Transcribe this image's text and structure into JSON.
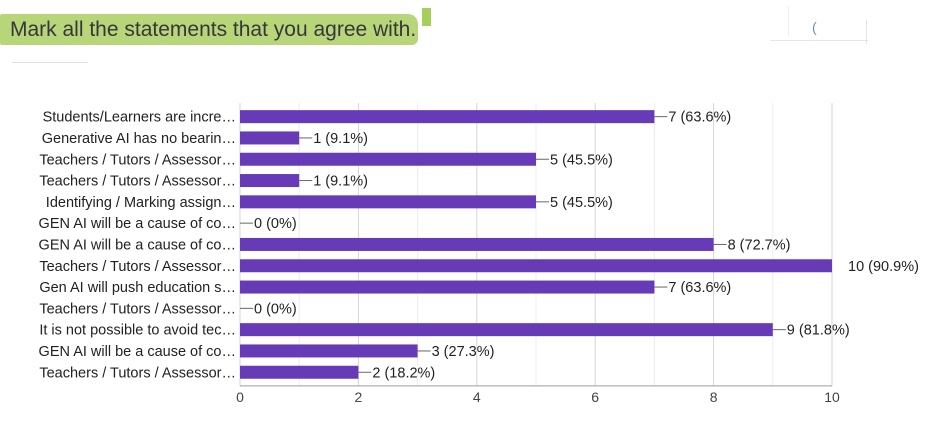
{
  "header": {
    "question": "Mark all the statements that you agree with.",
    "highlight_color": "#b7d67a"
  },
  "chart_data": {
    "type": "bar",
    "orientation": "horizontal",
    "bar_color": "#673ab7",
    "categories": [
      "Students/Learners are incre…",
      "Generative AI has no bearin…",
      "Teachers / Tutors / Assessor…",
      "Teachers / Tutors / Assessor…",
      "Identifying / Marking assign…",
      "GEN AI will be a cause of co…",
      "GEN AI will be a cause of co…",
      "Teachers / Tutors / Assessor…",
      "Gen AI will push education s…",
      "Teachers / Tutors / Assessor…",
      "It is not possible to avoid tec…",
      "GEN AI will be a cause of co…",
      "Teachers / Tutors / Assessor…"
    ],
    "values": [
      7,
      1,
      5,
      1,
      5,
      0,
      8,
      10,
      7,
      0,
      9,
      3,
      2
    ],
    "value_labels": [
      "7 (63.6%)",
      "1 (9.1%)",
      "5 (45.5%)",
      "1 (9.1%)",
      "5 (45.5%)",
      "0 (0%)",
      "8 (72.7%)",
      "10 (90.9%)",
      "7 (63.6%)",
      "0 (0%)",
      "9 (81.8%)",
      "3 (27.3%)",
      "2 (18.2%)"
    ],
    "xlim": [
      0,
      10
    ],
    "x_ticks": [
      "0",
      "2",
      "4",
      "6",
      "8",
      "10"
    ],
    "grid": true
  }
}
